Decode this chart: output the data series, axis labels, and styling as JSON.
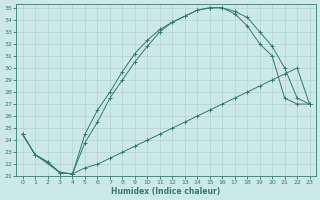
{
  "xlabel": "Humidex (Indice chaleur)",
  "bg_color": "#cde8e8",
  "grid_color": "#b0d4d4",
  "line_color": "#2e7d6e",
  "xlim": [
    -0.5,
    23.5
  ],
  "ylim": [
    21,
    35.3
  ],
  "yticks": [
    21,
    22,
    23,
    24,
    25,
    26,
    27,
    28,
    29,
    30,
    31,
    32,
    33,
    34,
    35
  ],
  "xticks": [
    0,
    1,
    2,
    3,
    4,
    5,
    6,
    7,
    8,
    9,
    10,
    11,
    12,
    13,
    14,
    15,
    16,
    17,
    18,
    19,
    20,
    21,
    22,
    23
  ],
  "curve1_x": [
    0,
    1,
    2,
    3,
    4,
    5,
    6,
    7,
    8,
    9,
    10,
    11,
    12,
    13,
    14,
    15,
    16,
    17,
    18,
    19,
    20,
    21,
    22,
    23
  ],
  "curve1_y": [
    24.5,
    22.8,
    22.2,
    21.3,
    21.2,
    21.7,
    22.0,
    22.5,
    23.0,
    23.5,
    24.0,
    24.5,
    25.0,
    25.5,
    26.0,
    26.5,
    27.0,
    27.5,
    28.0,
    28.5,
    29.0,
    29.5,
    30.0,
    27.0
  ],
  "curve2_x": [
    0,
    1,
    2,
    3,
    4,
    5,
    6,
    7,
    8,
    9,
    10,
    11,
    12,
    13,
    14,
    15,
    16,
    17,
    18,
    19,
    20,
    21,
    22,
    23
  ],
  "curve2_y": [
    24.5,
    22.8,
    22.2,
    21.3,
    21.2,
    24.5,
    26.5,
    28.0,
    29.7,
    31.2,
    32.3,
    33.2,
    33.8,
    34.3,
    34.8,
    35.0,
    35.0,
    34.7,
    34.2,
    33.0,
    31.8,
    30.0,
    27.5,
    27.0
  ],
  "curve3_x": [
    0,
    1,
    3,
    4,
    5,
    6,
    7,
    8,
    9,
    10,
    11,
    12,
    13,
    14,
    15,
    16,
    17,
    18,
    19,
    20,
    21,
    22,
    23
  ],
  "curve3_y": [
    24.5,
    22.8,
    21.3,
    21.2,
    23.8,
    25.5,
    27.5,
    29.0,
    30.5,
    31.8,
    33.0,
    33.8,
    34.3,
    34.8,
    35.0,
    35.0,
    34.5,
    33.5,
    32.0,
    31.0,
    27.5,
    27.0,
    27.0
  ]
}
